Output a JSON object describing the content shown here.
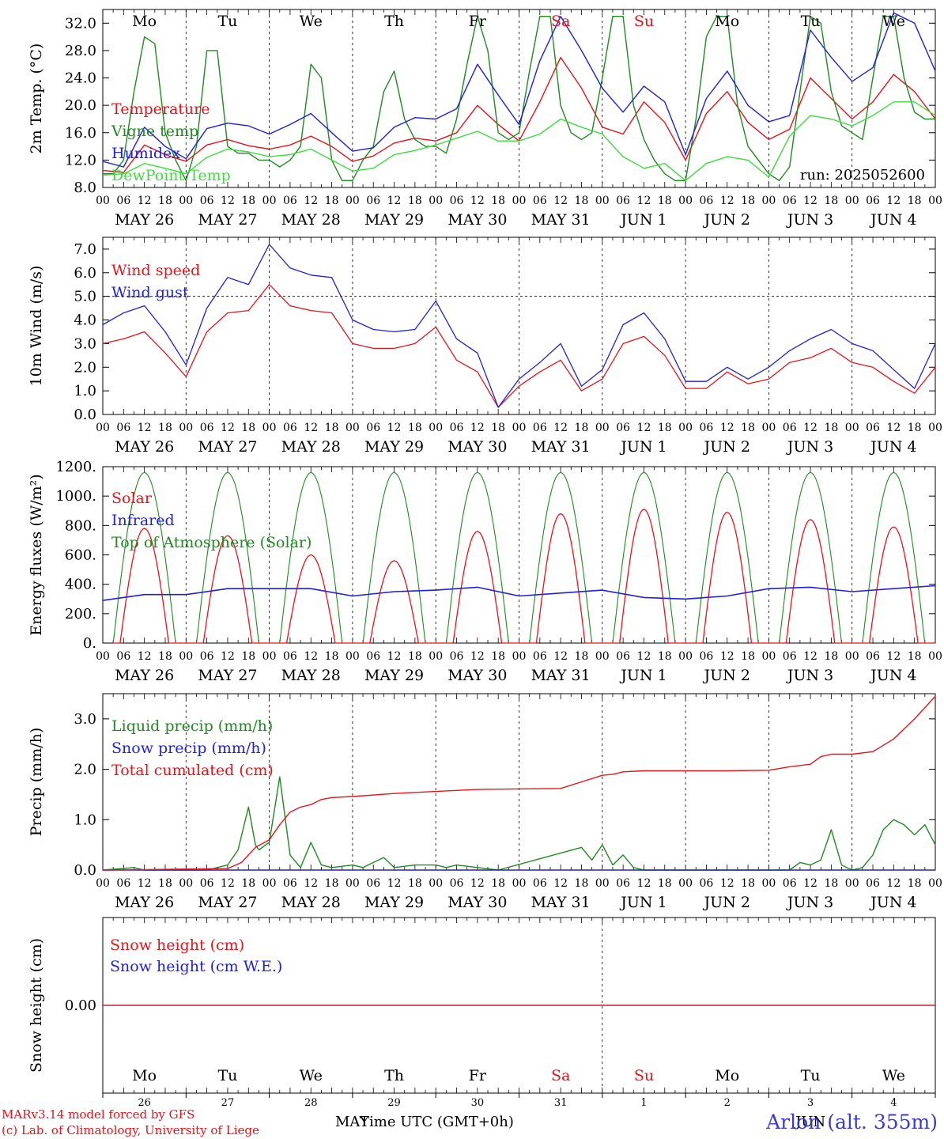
{
  "model_credit": "MARv3.14 model forced by GFS",
  "lab_credit": "(c) Lab. of Climatology, University of Liege",
  "station": "Arlon (alt. 355m)",
  "x_axis_title": "Time UTC (GMT+0h)",
  "run_label": "run: 2025052600",
  "hour_ticks": [
    "00",
    "06",
    "12",
    "18"
  ],
  "date_labels": [
    "MAY 26",
    "MAY 27",
    "MAY 28",
    "MAY 29",
    "MAY 30",
    "MAY 31",
    "JUN  1",
    "JUN  2",
    "JUN  3",
    "JUN  4"
  ],
  "weekday_labels": [
    "Mo",
    "Tu",
    "We",
    "Th",
    "Fr",
    "Sa",
    "Su",
    "Mo",
    "Tu",
    "We"
  ],
  "weekend_flags": [
    false,
    false,
    false,
    false,
    false,
    true,
    true,
    false,
    false,
    false
  ],
  "bottom_day_numbers": [
    "26",
    "27",
    "28",
    "29",
    "30",
    "31",
    "1",
    "2",
    "3",
    "4"
  ],
  "bottom_months": [
    "MAY",
    "JUN"
  ],
  "colors": {
    "red": "#e8141a",
    "green": "#1f8a1f",
    "blue": "#1f1fe0",
    "lightgreen": "#3fdc3f",
    "weekend": "#e8141a"
  },
  "chart_data": [
    {
      "type": "line",
      "ylabel": "2m Temp. (°C)",
      "ylim": [
        8,
        34
      ],
      "yticks": [
        "8.0",
        "12.0",
        "16.0",
        "20.0",
        "24.0",
        "28.0",
        "32.0"
      ],
      "x_unit": "hours since 2025-05-26 00 UTC",
      "series": [
        {
          "name": "Temperature",
          "color": "red",
          "x": [
            0,
            6,
            12,
            18,
            24,
            30,
            36,
            42,
            48,
            54,
            60,
            66,
            72,
            78,
            84,
            90,
            96,
            102,
            108,
            114,
            120,
            126,
            132,
            138,
            144,
            150,
            156,
            162,
            168,
            174,
            180,
            186,
            192,
            198,
            204,
            210,
            216,
            222,
            228,
            234,
            240
          ],
          "values": [
            10.5,
            10.2,
            14.2,
            12.8,
            11.8,
            14.2,
            15.0,
            14.1,
            13.6,
            14.2,
            15.5,
            14.0,
            11.8,
            12.6,
            14.5,
            15.2,
            14.8,
            16.0,
            20.0,
            17.2,
            14.8,
            20.5,
            27.0,
            22.5,
            16.8,
            15.8,
            20.5,
            17.5,
            12.0,
            18.8,
            22.0,
            17.5,
            15.0,
            16.5,
            24.0,
            21.0,
            18.0,
            20.5,
            24.5,
            22.0,
            18.0
          ]
        },
        {
          "name": "Vigne temp",
          "color": "green",
          "x": [
            0,
            3,
            6,
            9,
            12,
            15,
            18,
            21,
            24,
            27,
            30,
            33,
            36,
            39,
            42,
            45,
            48,
            51,
            54,
            57,
            60,
            63,
            66,
            69,
            72,
            75,
            78,
            81,
            84,
            87,
            90,
            93,
            96,
            99,
            102,
            105,
            108,
            111,
            114,
            117,
            120,
            123,
            126,
            129,
            132,
            135,
            138,
            141,
            144,
            147,
            150,
            153,
            156,
            159,
            162,
            165,
            168,
            171,
            174,
            177,
            180,
            183,
            186,
            189,
            192,
            195,
            198,
            201,
            204,
            207,
            210,
            213,
            216,
            219,
            222,
            225,
            228,
            231,
            234,
            237,
            240
          ],
          "values": [
            10,
            10,
            12,
            22,
            30,
            29,
            16,
            12,
            9,
            14,
            28,
            28,
            14,
            13,
            13,
            12,
            12,
            11,
            12,
            14,
            26,
            24,
            12,
            9,
            9,
            12,
            14,
            22,
            25,
            18,
            15,
            14,
            14,
            13,
            18,
            26,
            33,
            28,
            16,
            15,
            16,
            25,
            33,
            33,
            20,
            16,
            15,
            16,
            24,
            33,
            33,
            20,
            15,
            12,
            10,
            9,
            9,
            18,
            30,
            33,
            33,
            20,
            14,
            12,
            10,
            9,
            11,
            22,
            33,
            32,
            22,
            17,
            16,
            15,
            24,
            33,
            33,
            24,
            19,
            18,
            18
          ]
        },
        {
          "name": "Humidex",
          "color": "blue",
          "x": [
            0,
            6,
            12,
            18,
            24,
            30,
            36,
            42,
            48,
            54,
            60,
            66,
            72,
            78,
            84,
            90,
            96,
            102,
            108,
            114,
            120,
            126,
            132,
            138,
            144,
            150,
            156,
            162,
            168,
            174,
            180,
            186,
            192,
            198,
            204,
            210,
            216,
            222,
            228,
            234,
            240
          ],
          "values": [
            11.8,
            11.0,
            16.8,
            14.0,
            12.2,
            16.6,
            17.4,
            17.0,
            15.8,
            17.2,
            18.8,
            16.0,
            13.3,
            13.8,
            16.8,
            18.2,
            18.0,
            19.5,
            26.0,
            21.5,
            17.2,
            26.5,
            33.0,
            28.0,
            22.5,
            19.0,
            22.8,
            20.5,
            12.8,
            21.0,
            25.0,
            20.0,
            17.6,
            18.5,
            31.0,
            27.0,
            23.5,
            25.5,
            33.5,
            32.0,
            25.0
          ]
        },
        {
          "name": "DewPoint Temp",
          "color": "lightgreen",
          "x": [
            0,
            6,
            12,
            18,
            24,
            30,
            36,
            42,
            48,
            54,
            60,
            66,
            72,
            78,
            84,
            90,
            96,
            102,
            108,
            114,
            120,
            126,
            132,
            138,
            144,
            150,
            156,
            162,
            168,
            174,
            180,
            186,
            192,
            198,
            204,
            210,
            216,
            222,
            228,
            234,
            240
          ],
          "values": [
            9.8,
            10.0,
            11.5,
            10.8,
            10.0,
            12.4,
            13.6,
            13.2,
            12.5,
            12.8,
            13.6,
            12.0,
            10.4,
            10.8,
            12.8,
            13.4,
            14.2,
            15.2,
            16.2,
            14.8,
            14.8,
            15.8,
            18.0,
            16.8,
            15.8,
            12.5,
            10.8,
            11.5,
            9.0,
            11.5,
            12.5,
            12.0,
            9.5,
            15.5,
            18.5,
            18.0,
            17.0,
            18.5,
            20.5,
            20.5,
            18.5
          ]
        }
      ]
    },
    {
      "type": "line",
      "ylabel": "10m Wind (m/s)",
      "ylim": [
        0,
        7.5
      ],
      "yticks": [
        "0.0",
        "1.0",
        "2.0",
        "3.0",
        "4.0",
        "5.0",
        "6.0",
        "7.0"
      ],
      "reference_line": 5.0,
      "x_unit": "hours since 2025-05-26 00 UTC",
      "series": [
        {
          "name": "Wind speed",
          "color": "red",
          "x": [
            0,
            6,
            12,
            18,
            24,
            30,
            36,
            42,
            48,
            54,
            60,
            66,
            72,
            78,
            84,
            90,
            96,
            102,
            108,
            114,
            120,
            126,
            132,
            138,
            144,
            150,
            156,
            162,
            168,
            174,
            180,
            186,
            192,
            198,
            204,
            210,
            216,
            222,
            228,
            234,
            240
          ],
          "values": [
            3.0,
            3.2,
            3.5,
            2.6,
            1.6,
            3.5,
            4.3,
            4.4,
            5.5,
            4.6,
            4.4,
            4.3,
            3.0,
            2.8,
            2.8,
            3.0,
            3.7,
            2.3,
            1.8,
            0.3,
            1.2,
            1.8,
            2.3,
            1.0,
            1.5,
            3.0,
            3.3,
            2.5,
            1.1,
            1.1,
            1.8,
            1.3,
            1.5,
            2.2,
            2.4,
            2.8,
            2.2,
            2.0,
            1.4,
            0.9,
            2.0
          ]
        },
        {
          "name": "Wind gust",
          "color": "blue",
          "x": [
            0,
            6,
            12,
            18,
            24,
            30,
            36,
            42,
            48,
            54,
            60,
            66,
            72,
            78,
            84,
            90,
            96,
            102,
            108,
            114,
            120,
            126,
            132,
            138,
            144,
            150,
            156,
            162,
            168,
            174,
            180,
            186,
            192,
            198,
            204,
            210,
            216,
            222,
            228,
            234,
            240
          ],
          "values": [
            3.8,
            4.3,
            4.6,
            3.5,
            2.1,
            4.5,
            5.8,
            5.5,
            7.2,
            6.2,
            5.9,
            5.8,
            4.0,
            3.6,
            3.5,
            3.6,
            4.8,
            3.2,
            2.6,
            0.3,
            1.5,
            2.2,
            3.0,
            1.2,
            1.9,
            3.8,
            4.3,
            3.2,
            1.4,
            1.4,
            2.0,
            1.5,
            2.0,
            2.7,
            3.2,
            3.6,
            3.0,
            2.7,
            1.9,
            1.1,
            3.0
          ]
        }
      ]
    },
    {
      "type": "line",
      "ylabel": "Energy fluxes (W/m²)",
      "ylim": [
        0,
        1200
      ],
      "yticks": [
        "0.",
        "200.",
        "400.",
        "600.",
        "800.",
        "1000.",
        "1200."
      ],
      "x_unit": "hours since 2025-05-26 00 UTC",
      "toa_peak": 1160,
      "solar_daily_peaks": [
        780,
        730,
        600,
        560,
        760,
        880,
        910,
        890,
        840,
        790
      ],
      "series": [
        {
          "name": "Solar",
          "color": "red"
        },
        {
          "name": "Infrared",
          "color": "blue",
          "x": [
            0,
            12,
            24,
            36,
            48,
            60,
            72,
            84,
            96,
            108,
            120,
            132,
            144,
            156,
            168,
            180,
            192,
            204,
            216,
            228,
            240
          ],
          "values": [
            290,
            330,
            330,
            370,
            370,
            370,
            320,
            350,
            360,
            380,
            320,
            340,
            360,
            310,
            300,
            320,
            370,
            380,
            350,
            370,
            390
          ]
        },
        {
          "name": "Top of Atmosphere (Solar)",
          "color": "green"
        }
      ]
    },
    {
      "type": "line",
      "ylabel": "Precip (mm/h)",
      "ylim": [
        0,
        3.5
      ],
      "yticks": [
        "0.0",
        "1.0",
        "2.0",
        "3.0"
      ],
      "x_unit": "hours since 2025-05-26 00 UTC",
      "series": [
        {
          "name": "Liquid precip (mm/h)",
          "color": "green",
          "x": [
            0,
            9,
            12,
            30,
            36,
            39,
            42,
            44,
            45,
            47,
            48,
            51,
            54,
            57,
            60,
            63,
            66,
            72,
            75,
            81,
            84,
            90,
            96,
            99,
            102,
            108,
            114,
            138,
            141,
            144,
            147,
            150,
            153,
            156,
            198,
            201,
            204,
            207,
            210,
            213,
            216,
            219,
            222,
            225,
            228,
            231,
            234,
            237,
            240
          ],
          "values": [
            0,
            0.05,
            0,
            0,
            0.1,
            0.4,
            1.25,
            0.5,
            0.4,
            0.5,
            0.55,
            1.85,
            0.3,
            0.05,
            0.55,
            0.1,
            0.05,
            0.1,
            0.05,
            0.25,
            0.05,
            0.1,
            0.1,
            0.05,
            0.1,
            0.05,
            0,
            0.45,
            0.2,
            0.5,
            0.1,
            0.3,
            0.05,
            0,
            0,
            0.15,
            0.1,
            0.2,
            0.8,
            0.1,
            0,
            0.05,
            0.3,
            0.8,
            1.0,
            0.9,
            0.7,
            0.9,
            0.5
          ]
        },
        {
          "name": "Snow precip (mm/h)",
          "color": "blue",
          "x": [
            0,
            240
          ],
          "values": [
            0,
            0
          ]
        },
        {
          "name": "Total cumulated (cm)",
          "color": "red",
          "x": [
            0,
            12,
            24,
            36,
            40,
            44,
            48,
            51,
            54,
            57,
            60,
            63,
            66,
            72,
            84,
            96,
            108,
            120,
            132,
            138,
            144,
            147,
            150,
            156,
            168,
            180,
            192,
            198,
            204,
            207,
            210,
            216,
            222,
            228,
            234,
            240
          ],
          "values": [
            0,
            0.01,
            0.02,
            0.03,
            0.15,
            0.45,
            0.6,
            0.9,
            1.15,
            1.25,
            1.3,
            1.4,
            1.44,
            1.46,
            1.52,
            1.56,
            1.6,
            1.61,
            1.62,
            1.75,
            1.88,
            1.9,
            1.95,
            1.97,
            1.97,
            1.97,
            1.98,
            2.05,
            2.1,
            2.25,
            2.3,
            2.3,
            2.35,
            2.6,
            3.0,
            3.45
          ]
        }
      ]
    },
    {
      "type": "line",
      "ylabel": "Snow height (cm)",
      "yticks": [
        "0.00"
      ],
      "x_unit": "hours since 2025-05-26 00 UTC",
      "series": [
        {
          "name": "Snow height (cm)",
          "color": "red",
          "x": [
            0,
            240
          ],
          "values": [
            0,
            0
          ]
        },
        {
          "name": "Snow height (cm W.E.)",
          "color": "blue",
          "x": [
            0,
            240
          ],
          "values": [
            0,
            0
          ]
        }
      ]
    }
  ]
}
